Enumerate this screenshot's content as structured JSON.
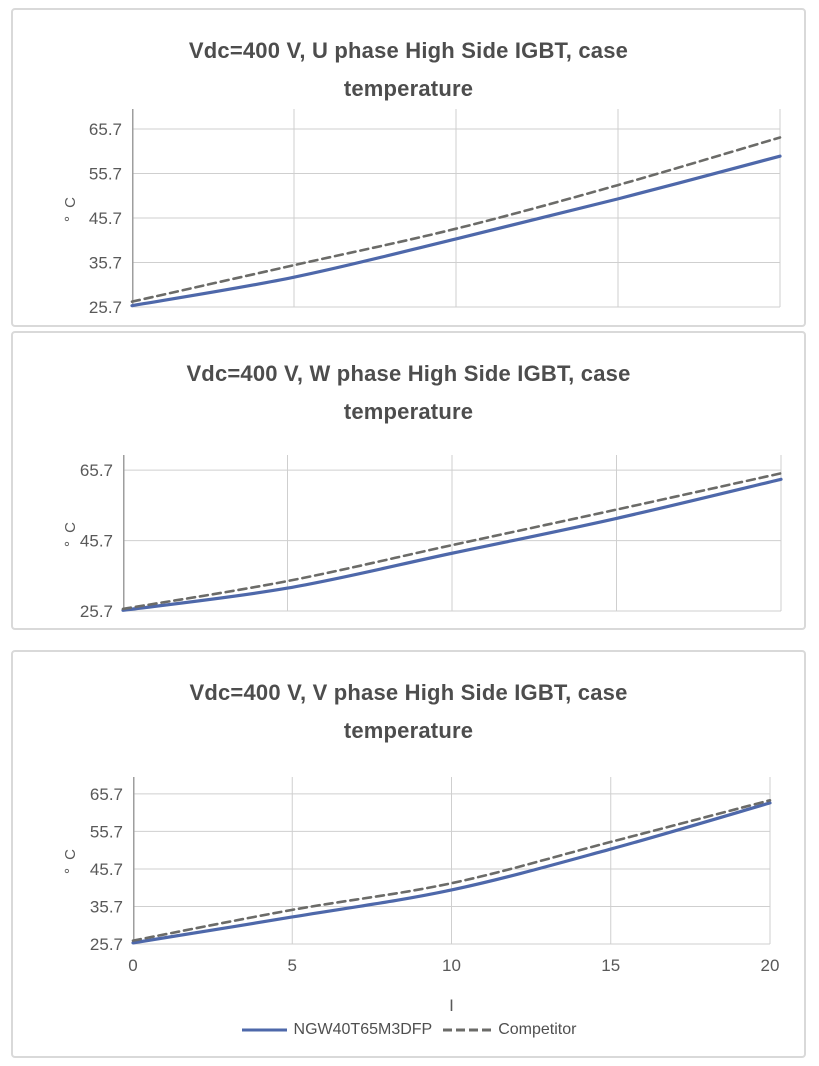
{
  "colors": {
    "series_ngw": "#4e68aa",
    "series_competitor": "#6b6b68",
    "gridline": "#cfcfcf",
    "axis_line": "#9e9e9e",
    "title_text": "#4d4d4d",
    "tick_label": "#595959",
    "panel_border": "#d9d9d9",
    "background": "#ffffff"
  },
  "legend": {
    "items": [
      {
        "label": "NGW40T65M3DFP",
        "style": "solid"
      },
      {
        "label": "Competitor",
        "style": "dashed"
      }
    ]
  },
  "chart_data": [
    {
      "type": "line",
      "title": "Vdc=400 V, U phase High Side IGBT, case temperature",
      "title_lines": [
        "Vdc=400 V, U phase High Side IGBT, case",
        "temperature"
      ],
      "ylabel": "° C",
      "xlabel": "",
      "x": [
        0,
        5,
        10,
        15,
        20
      ],
      "series": [
        {
          "name": "NGW40T65M3DFP",
          "style": "solid",
          "color": "#4e68aa",
          "values": [
            26.0,
            32.4,
            41.0,
            50.0,
            59.6
          ]
        },
        {
          "name": "Competitor",
          "style": "dashed",
          "color": "#6b6b68",
          "values": [
            26.9,
            35.1,
            43.3,
            53.1,
            63.8
          ]
        }
      ],
      "yticks": [
        25.7,
        35.7,
        45.7,
        55.7,
        65.7
      ],
      "xticks": [],
      "ylim": [
        25.7,
        70.2
      ],
      "xlim": [
        0,
        20
      ],
      "grid": true,
      "legend_position": "none"
    },
    {
      "type": "line",
      "title": "Vdc=400 V, W phase High Side IGBT, case temperature",
      "title_lines": [
        "Vdc=400 V, W phase High Side IGBT, case",
        "temperature"
      ],
      "ylabel": "° C",
      "xlabel": "",
      "x": [
        0,
        5,
        10,
        15,
        20
      ],
      "series": [
        {
          "name": "NGW40T65M3DFP",
          "style": "solid",
          "color": "#4e68aa",
          "values": [
            25.9,
            32.2,
            42.1,
            52.0,
            63.1
          ]
        },
        {
          "name": "Competitor",
          "style": "dashed",
          "color": "#6b6b68",
          "values": [
            26.3,
            34.2,
            44.4,
            54.5,
            64.8
          ]
        }
      ],
      "yticks": [
        25.7,
        45.7,
        65.7
      ],
      "xticks": [],
      "ylim": [
        25.7,
        70.0
      ],
      "xlim": [
        0,
        20
      ],
      "grid": true,
      "legend_position": "none"
    },
    {
      "type": "line",
      "title": "Vdc=400 V, V phase High Side IGBT, case temperature",
      "title_lines": [
        "Vdc=400 V, V phase High Side IGBT, case",
        "temperature"
      ],
      "ylabel": "° C",
      "xlabel": "I",
      "x": [
        0,
        5,
        10,
        15,
        20
      ],
      "series": [
        {
          "name": "NGW40T65M3DFP",
          "style": "solid",
          "color": "#4e68aa",
          "values": [
            26.0,
            32.9,
            40.1,
            51.0,
            63.3
          ]
        },
        {
          "name": "Competitor",
          "style": "dashed",
          "color": "#6b6b68",
          "values": [
            26.6,
            34.8,
            41.9,
            52.9,
            64.0
          ]
        }
      ],
      "yticks": [
        25.7,
        35.7,
        45.7,
        55.7,
        65.7
      ],
      "xticks": [
        0,
        5,
        10,
        15,
        20
      ],
      "ylim": [
        25.7,
        70.2
      ],
      "xlim": [
        0,
        20
      ],
      "grid": true,
      "legend_position": "bottom"
    }
  ]
}
